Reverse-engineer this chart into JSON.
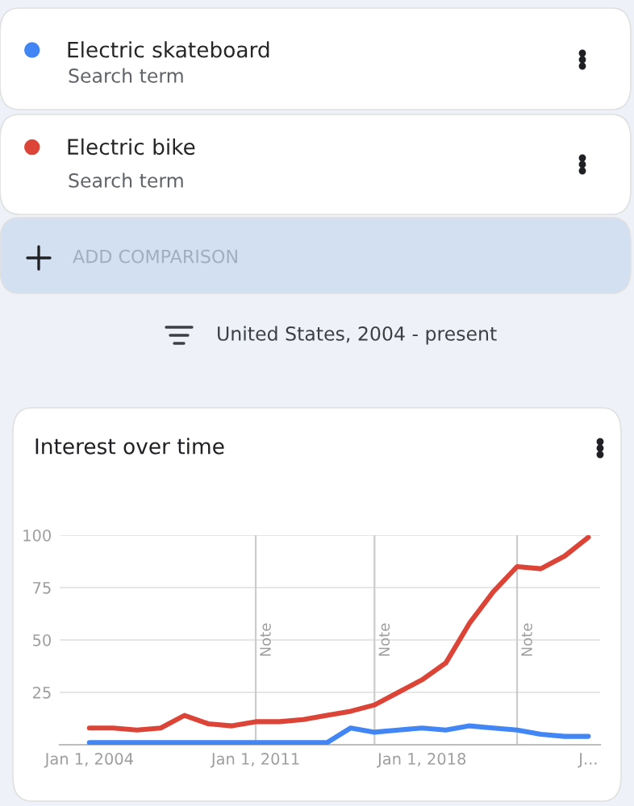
{
  "chart_data": {
    "type": "line",
    "title": "Interest over time",
    "annotations": [
      "Search term",
      "Search term",
      "ADD COMPARISON",
      "United States, 2004 - present"
    ],
    "x": [
      "2004",
      "2005",
      "2006",
      "2007",
      "2008",
      "2009",
      "2010",
      "2011",
      "2012",
      "2013",
      "2014",
      "2015",
      "2016",
      "2017",
      "2018",
      "2019",
      "2020",
      "2021",
      "2022",
      "2023",
      "2024",
      "2025"
    ],
    "series": [
      {
        "name": "Electric skateboard",
        "color": "#4285f4",
        "values": [
          1,
          1,
          1,
          1,
          1,
          1,
          1,
          1,
          1,
          1,
          1,
          8,
          6,
          7,
          8,
          7,
          9,
          8,
          7,
          5,
          4,
          4
        ]
      },
      {
        "name": "Electric bike",
        "color": "#db4437",
        "values": [
          8,
          8,
          7,
          8,
          14,
          10,
          9,
          11,
          11,
          12,
          14,
          16,
          19,
          25,
          31,
          39,
          58,
          73,
          85,
          84,
          90,
          99
        ]
      }
    ],
    "xlim": [
      "2002-10",
      "2025-07"
    ],
    "xticks": [
      {
        "value": "2004-01-01",
        "label": "Jan 1, 2004"
      },
      {
        "value": "2011-01-01",
        "label": "Jan 1, 2011"
      },
      {
        "value": "2018-01-01",
        "label": "Jan 1, 2018"
      },
      {
        "value": "2025-01-01",
        "label": "J..."
      }
    ],
    "ylim": [
      0,
      100
    ],
    "yticks": [
      25,
      50,
      75,
      100
    ],
    "ref_lines": [
      {
        "axis": "x",
        "value": "2011-01-01",
        "label": "Note",
        "color": "#cccccc"
      },
      {
        "axis": "x",
        "value": "2016-01-01",
        "label": "Note",
        "color": "#cccccc"
      },
      {
        "axis": "x",
        "value": "2022-01-01",
        "label": "Note",
        "color": "#cccccc"
      }
    ],
    "grid": "y",
    "legend": "top",
    "marker": "none",
    "line_style": "solid"
  }
}
